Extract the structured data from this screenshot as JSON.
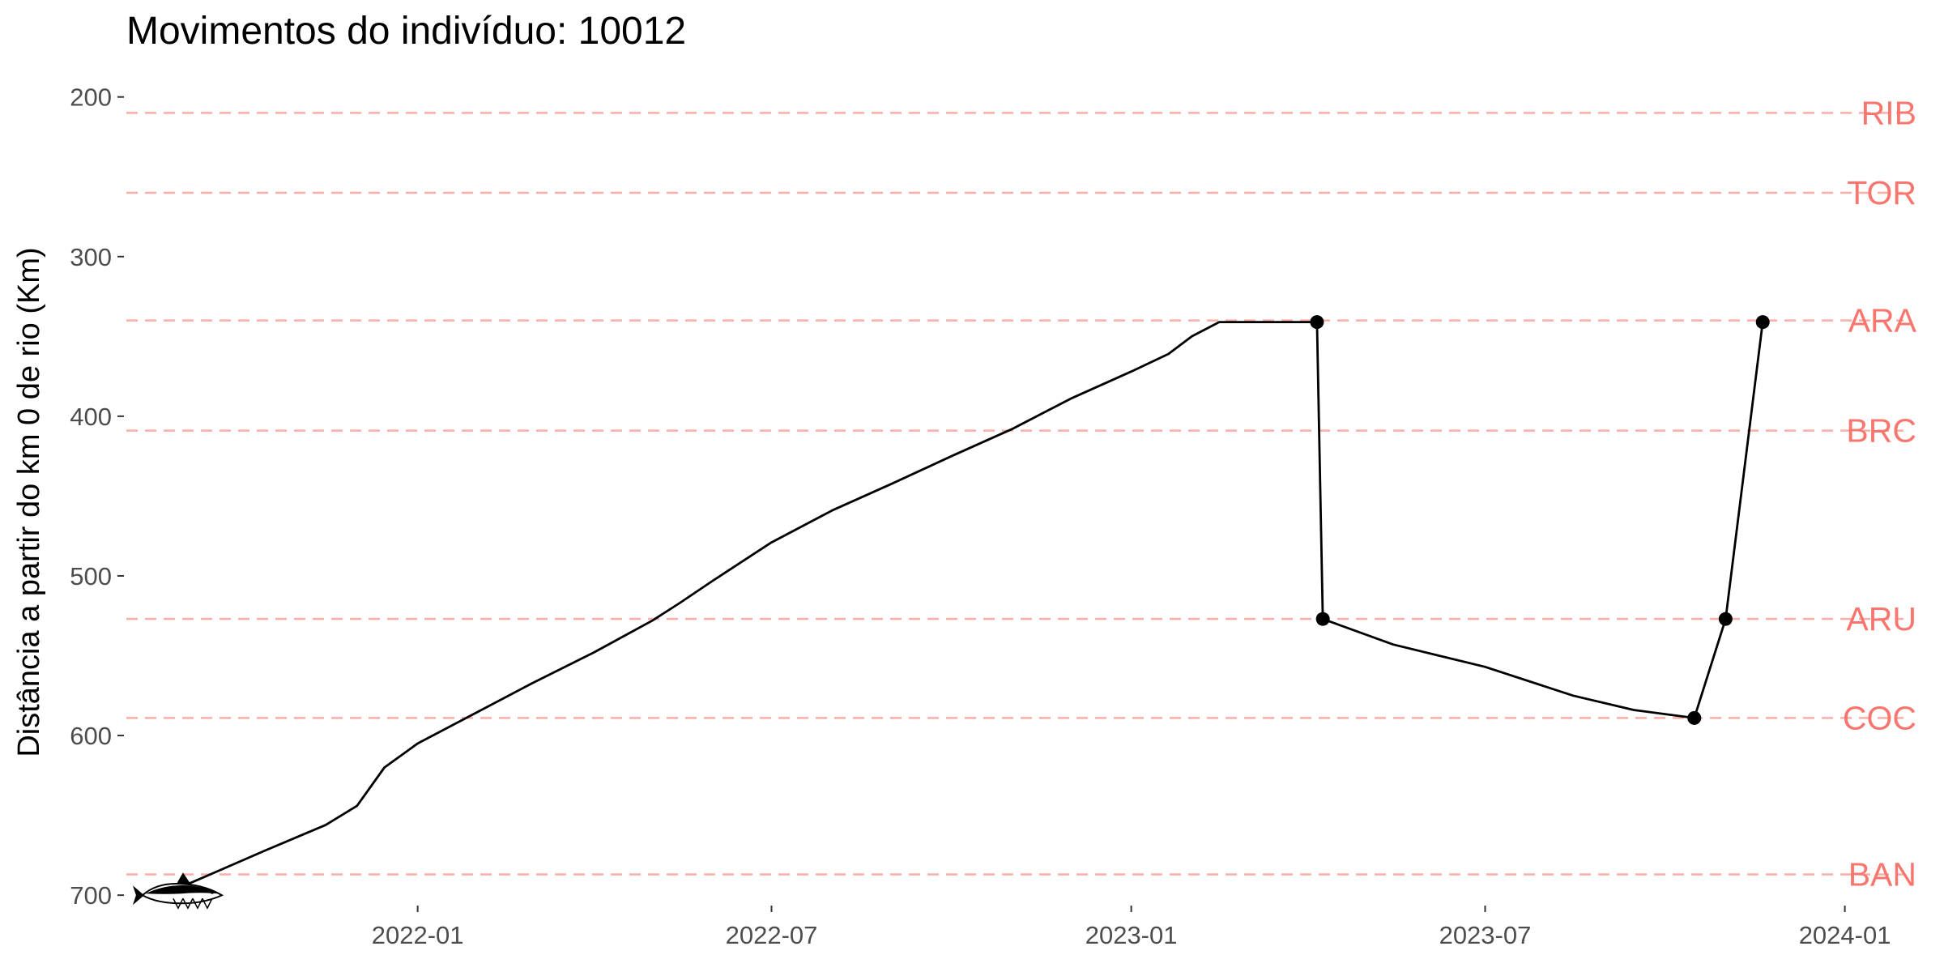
{
  "chart_data": {
    "type": "line",
    "title": "Movimentos do indivíduo: 10012",
    "xlabel": "",
    "ylabel": "Distância a partir do km 0 de rio (Km)",
    "x_ticks": [
      "2022-01",
      "2022-07",
      "2023-01",
      "2023-07",
      "2024-01"
    ],
    "y_ticks": [
      200,
      300,
      400,
      500,
      600,
      700
    ],
    "xlim": [
      "2021-08-05",
      "2024-01-31"
    ],
    "ylim": [
      705,
      190
    ],
    "y_reversed": true,
    "grid": false,
    "reference_color": "#F8766D",
    "line_color": "#000000",
    "reference_lines": [
      {
        "label": "RIB",
        "y": 210
      },
      {
        "label": "TOR",
        "y": 260
      },
      {
        "label": "ARA",
        "y": 340
      },
      {
        "label": "BRC",
        "y": 409
      },
      {
        "label": "ARU",
        "y": 527
      },
      {
        "label": "COC",
        "y": 589
      },
      {
        "label": "BAN",
        "y": 687
      }
    ],
    "series": [
      {
        "values": [
          {
            "x": "2021-08-29",
            "y": 697
          },
          {
            "x": "2021-09-15",
            "y": 688
          },
          {
            "x": "2021-10-15",
            "y": 672
          },
          {
            "x": "2021-11-15",
            "y": 656
          },
          {
            "x": "2021-12-01",
            "y": 644
          },
          {
            "x": "2021-12-15",
            "y": 620
          },
          {
            "x": "2022-01-01",
            "y": 605
          },
          {
            "x": "2022-02-01",
            "y": 585
          },
          {
            "x": "2022-03-01",
            "y": 567
          },
          {
            "x": "2022-04-01",
            "y": 548
          },
          {
            "x": "2022-05-01",
            "y": 528
          },
          {
            "x": "2022-05-15",
            "y": 517
          },
          {
            "x": "2022-06-01",
            "y": 503
          },
          {
            "x": "2022-07-01",
            "y": 479
          },
          {
            "x": "2022-08-01",
            "y": 459
          },
          {
            "x": "2022-09-01",
            "y": 442
          },
          {
            "x": "2022-10-01",
            "y": 425
          },
          {
            "x": "2022-11-01",
            "y": 408
          },
          {
            "x": "2022-12-01",
            "y": 389
          },
          {
            "x": "2023-01-01",
            "y": 372
          },
          {
            "x": "2023-01-20",
            "y": 361
          },
          {
            "x": "2023-02-01",
            "y": 350
          },
          {
            "x": "2023-02-15",
            "y": 341
          },
          {
            "x": "2023-04-06",
            "y": 341
          },
          {
            "x": "2023-04-09",
            "y": 527
          },
          {
            "x": "2023-05-15",
            "y": 543
          },
          {
            "x": "2023-07-01",
            "y": 557
          },
          {
            "x": "2023-08-15",
            "y": 575
          },
          {
            "x": "2023-09-15",
            "y": 584
          },
          {
            "x": "2023-10-16",
            "y": 589
          },
          {
            "x": "2023-11-01",
            "y": 527
          },
          {
            "x": "2023-11-20",
            "y": 341
          }
        ]
      }
    ],
    "detection_points": [
      {
        "x": "2023-04-06",
        "y": 341
      },
      {
        "x": "2023-04-09",
        "y": 527
      },
      {
        "x": "2023-10-16",
        "y": 589
      },
      {
        "x": "2023-11-01",
        "y": 527
      },
      {
        "x": "2023-11-20",
        "y": 341
      }
    ],
    "start_marker": {
      "icon": "fish-icon",
      "x": "2021-08-29",
      "y": 697
    }
  }
}
